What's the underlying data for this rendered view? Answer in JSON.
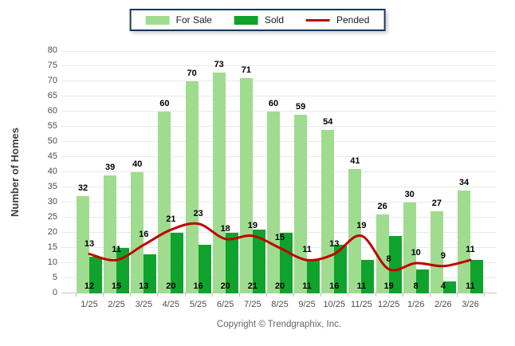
{
  "chart_data": {
    "type": "bar",
    "categories": [
      "1/25",
      "2/25",
      "3/25",
      "4/25",
      "5/25",
      "6/25",
      "7/25",
      "8/25",
      "9/25",
      "10/25",
      "11/25",
      "12/25",
      "1/26",
      "2/26",
      "3/26"
    ],
    "series": [
      {
        "name": "For Sale",
        "type": "bar",
        "color": "#A0DC8F",
        "values": [
          32,
          39,
          40,
          60,
          70,
          73,
          71,
          60,
          59,
          54,
          41,
          26,
          30,
          27,
          34
        ]
      },
      {
        "name": "Sold",
        "type": "bar",
        "color": "#0FA32D",
        "values": [
          12,
          15,
          13,
          20,
          16,
          20,
          21,
          20,
          11,
          16,
          11,
          19,
          8,
          4,
          11
        ]
      },
      {
        "name": "Pended",
        "type": "line",
        "color": "#C00000",
        "values": [
          13,
          11,
          16,
          21,
          23,
          18,
          19,
          15,
          11,
          13,
          19,
          8,
          10,
          9,
          11
        ]
      }
    ],
    "title": "",
    "xlabel": "",
    "ylabel": "Number of Homes",
    "ylim": [
      0,
      80
    ],
    "y_ticks": [
      0,
      5,
      10,
      15,
      20,
      25,
      30,
      35,
      40,
      45,
      50,
      55,
      60,
      65,
      70,
      75,
      80
    ],
    "grid": true,
    "legend_position": "top-center"
  },
  "footer": {
    "copyright": "Copyright © Trendgraphix, Inc."
  }
}
